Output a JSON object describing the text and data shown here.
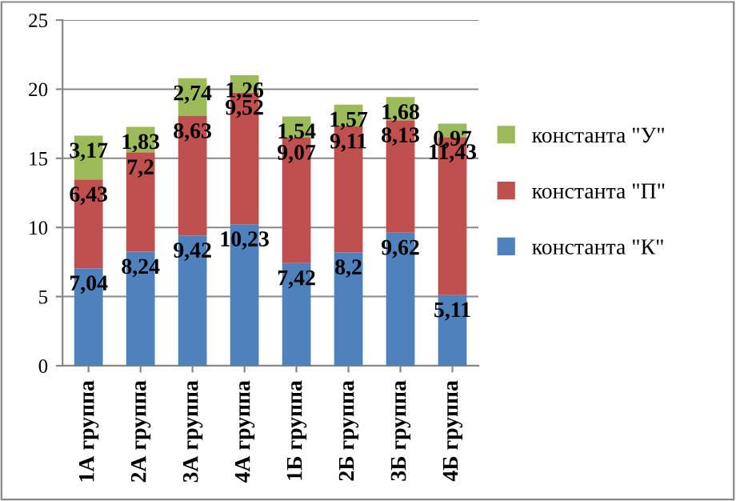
{
  "chart_data": {
    "type": "bar",
    "stacked": true,
    "categories": [
      "1А группа",
      "2А группа",
      "3А группа",
      "4А группа",
      "1Б группа",
      "2Б группа",
      "3Б группа",
      "4Б группа"
    ],
    "series": [
      {
        "name": "константа \"К\"",
        "color": "#4f81bd",
        "values": [
          7.04,
          8.24,
          9.42,
          10.23,
          7.42,
          8.2,
          9.62,
          5.11
        ],
        "value_labels": [
          "7,04",
          "8,24",
          "9,42",
          "10,23",
          "7,42",
          "8,2",
          "9,62",
          "5,11"
        ]
      },
      {
        "name": "константа \"П\"",
        "color": "#c0504d",
        "values": [
          6.43,
          7.2,
          8.63,
          9.52,
          9.07,
          9.11,
          8.13,
          11.43
        ],
        "value_labels": [
          "6,43",
          "7,2",
          "8,63",
          "9,52",
          "9,07",
          "9,11",
          "8,13",
          "11,43"
        ]
      },
      {
        "name": "константа \"У\"",
        "color": "#9bbb59",
        "values": [
          3.17,
          1.83,
          2.74,
          1.26,
          1.54,
          1.57,
          1.68,
          0.97
        ],
        "value_labels": [
          "3,17",
          "1,83",
          "2,74",
          "1,26",
          "1,54",
          "1,57",
          "1,68",
          "0,97"
        ]
      }
    ],
    "ylim": [
      0,
      25
    ],
    "yticks": [
      0,
      5,
      10,
      15,
      20,
      25
    ],
    "grid": "y",
    "legend": "right"
  }
}
